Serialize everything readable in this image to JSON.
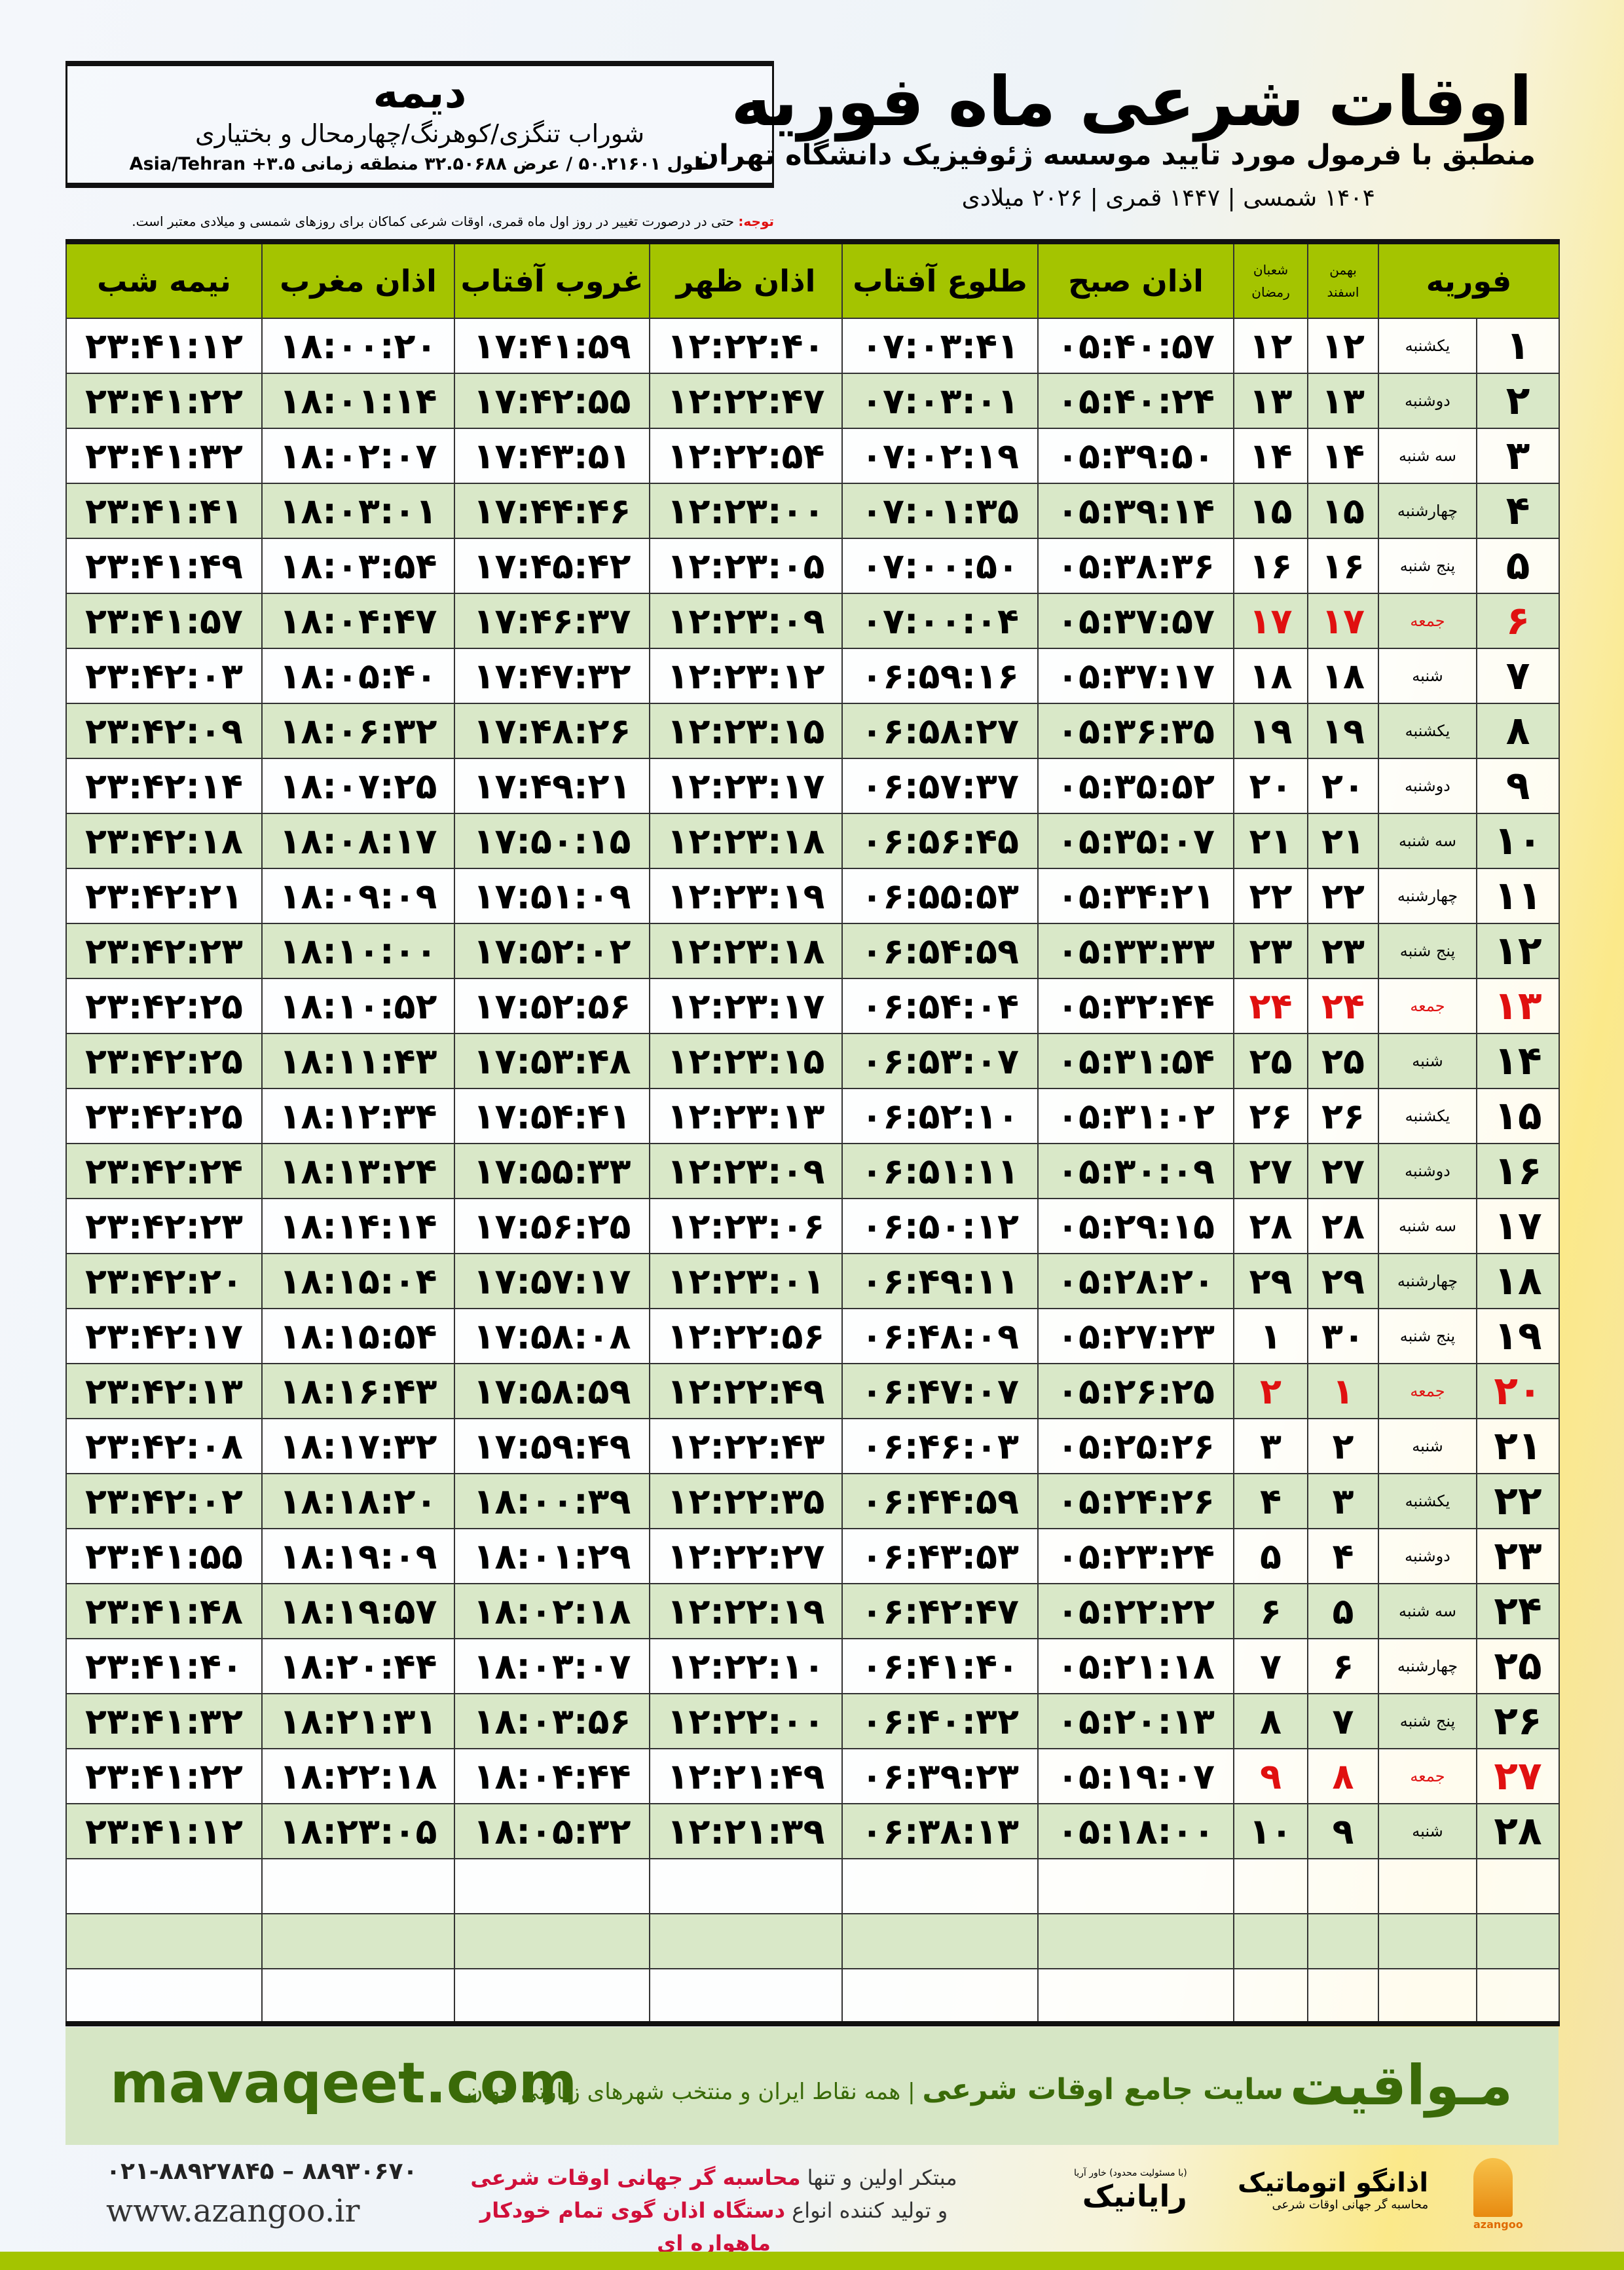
{
  "location": {
    "city": "دیمه",
    "region": "شوراب تنگزی/کوهرنگ/چهارمحال و بختیاری",
    "coords": "طول ۵۰.۲۱۶۰۱ / عرض ۳۲.۵۰۶۸۸ منطقه زمانی ۳.۵+ Asia/Tehran"
  },
  "header": {
    "title": "اوقات شرعی ماه فوریه",
    "subtitle": "منطبق با فرمول مورد تایید موسسه ژئوفیزیک دانشگاه تهران",
    "dates": "۱۴۰۴ شمسی | ۱۴۴۷ قمری | ۲۰۲۶ میلادی",
    "note_label": "توجه:",
    "note": " حتی در درصورت تغییر در روز اول ماه قمری، اوقات شرعی کماکان برای روزهای شمسی و میلادی معتبر است."
  },
  "table": {
    "columns": {
      "month": "فوریه",
      "persian_top": "بهمن",
      "persian_bottom": "اسفند",
      "hijri_top": "شعبان",
      "hijri_bottom": "رمضان",
      "fajr": "اذان صبح",
      "sunrise": "طلوع آفتاب",
      "dhuhr": "اذان ظهر",
      "sunset": "غروب آفتاب",
      "maghrib": "اذان مغرب",
      "midnight": "نیمه شب"
    },
    "friday_color": "#e01010",
    "rows": [
      [
        "۱",
        "یکشنبه",
        "۱۲",
        "۱۲",
        "۰۵:۴۰:۵۷",
        "۰۷:۰۳:۴۱",
        "۱۲:۲۲:۴۰",
        "۱۷:۴۱:۵۹",
        "۱۸:۰۰:۲۰",
        "۲۳:۴۱:۱۲"
      ],
      [
        "۲",
        "دوشنبه",
        "۱۳",
        "۱۳",
        "۰۵:۴۰:۲۴",
        "۰۷:۰۳:۰۱",
        "۱۲:۲۲:۴۷",
        "۱۷:۴۲:۵۵",
        "۱۸:۰۱:۱۴",
        "۲۳:۴۱:۲۲"
      ],
      [
        "۳",
        "سه شنبه",
        "۱۴",
        "۱۴",
        "۰۵:۳۹:۵۰",
        "۰۷:۰۲:۱۹",
        "۱۲:۲۲:۵۴",
        "۱۷:۴۳:۵۱",
        "۱۸:۰۲:۰۷",
        "۲۳:۴۱:۳۲"
      ],
      [
        "۴",
        "چهارشنبه",
        "۱۵",
        "۱۵",
        "۰۵:۳۹:۱۴",
        "۰۷:۰۱:۳۵",
        "۱۲:۲۳:۰۰",
        "۱۷:۴۴:۴۶",
        "۱۸:۰۳:۰۱",
        "۲۳:۴۱:۴۱"
      ],
      [
        "۵",
        "پنج شنبه",
        "۱۶",
        "۱۶",
        "۰۵:۳۸:۳۶",
        "۰۷:۰۰:۵۰",
        "۱۲:۲۳:۰۵",
        "۱۷:۴۵:۴۲",
        "۱۸:۰۳:۵۴",
        "۲۳:۴۱:۴۹"
      ],
      [
        "۶",
        "جمعه",
        "۱۷",
        "۱۷",
        "۰۵:۳۷:۵۷",
        "۰۷:۰۰:۰۴",
        "۱۲:۲۳:۰۹",
        "۱۷:۴۶:۳۷",
        "۱۸:۰۴:۴۷",
        "۲۳:۴۱:۵۷"
      ],
      [
        "۷",
        "شنبه",
        "۱۸",
        "۱۸",
        "۰۵:۳۷:۱۷",
        "۰۶:۵۹:۱۶",
        "۱۲:۲۳:۱۲",
        "۱۷:۴۷:۳۲",
        "۱۸:۰۵:۴۰",
        "۲۳:۴۲:۰۳"
      ],
      [
        "۸",
        "یکشنبه",
        "۱۹",
        "۱۹",
        "۰۵:۳۶:۳۵",
        "۰۶:۵۸:۲۷",
        "۱۲:۲۳:۱۵",
        "۱۷:۴۸:۲۶",
        "۱۸:۰۶:۳۲",
        "۲۳:۴۲:۰۹"
      ],
      [
        "۹",
        "دوشنبه",
        "۲۰",
        "۲۰",
        "۰۵:۳۵:۵۲",
        "۰۶:۵۷:۳۷",
        "۱۲:۲۳:۱۷",
        "۱۷:۴۹:۲۱",
        "۱۸:۰۷:۲۵",
        "۲۳:۴۲:۱۴"
      ],
      [
        "۱۰",
        "سه شنبه",
        "۲۱",
        "۲۱",
        "۰۵:۳۵:۰۷",
        "۰۶:۵۶:۴۵",
        "۱۲:۲۳:۱۸",
        "۱۷:۵۰:۱۵",
        "۱۸:۰۸:۱۷",
        "۲۳:۴۲:۱۸"
      ],
      [
        "۱۱",
        "چهارشنبه",
        "۲۲",
        "۲۲",
        "۰۵:۳۴:۲۱",
        "۰۶:۵۵:۵۳",
        "۱۲:۲۳:۱۹",
        "۱۷:۵۱:۰۹",
        "۱۸:۰۹:۰۹",
        "۲۳:۴۲:۲۱"
      ],
      [
        "۱۲",
        "پنج شنبه",
        "۲۳",
        "۲۳",
        "۰۵:۳۳:۳۳",
        "۰۶:۵۴:۵۹",
        "۱۲:۲۳:۱۸",
        "۱۷:۵۲:۰۲",
        "۱۸:۱۰:۰۰",
        "۲۳:۴۲:۲۳"
      ],
      [
        "۱۳",
        "جمعه",
        "۲۴",
        "۲۴",
        "۰۵:۳۲:۴۴",
        "۰۶:۵۴:۰۴",
        "۱۲:۲۳:۱۷",
        "۱۷:۵۲:۵۶",
        "۱۸:۱۰:۵۲",
        "۲۳:۴۲:۲۵"
      ],
      [
        "۱۴",
        "شنبه",
        "۲۵",
        "۲۵",
        "۰۵:۳۱:۵۴",
        "۰۶:۵۳:۰۷",
        "۱۲:۲۳:۱۵",
        "۱۷:۵۳:۴۸",
        "۱۸:۱۱:۴۳",
        "۲۳:۴۲:۲۵"
      ],
      [
        "۱۵",
        "یکشنبه",
        "۲۶",
        "۲۶",
        "۰۵:۳۱:۰۲",
        "۰۶:۵۲:۱۰",
        "۱۲:۲۳:۱۳",
        "۱۷:۵۴:۴۱",
        "۱۸:۱۲:۳۴",
        "۲۳:۴۲:۲۵"
      ],
      [
        "۱۶",
        "دوشنبه",
        "۲۷",
        "۲۷",
        "۰۵:۳۰:۰۹",
        "۰۶:۵۱:۱۱",
        "۱۲:۲۳:۰۹",
        "۱۷:۵۵:۳۳",
        "۱۸:۱۳:۲۴",
        "۲۳:۴۲:۲۴"
      ],
      [
        "۱۷",
        "سه شنبه",
        "۲۸",
        "۲۸",
        "۰۵:۲۹:۱۵",
        "۰۶:۵۰:۱۲",
        "۱۲:۲۳:۰۶",
        "۱۷:۵۶:۲۵",
        "۱۸:۱۴:۱۴",
        "۲۳:۴۲:۲۳"
      ],
      [
        "۱۸",
        "چهارشنبه",
        "۲۹",
        "۲۹",
        "۰۵:۲۸:۲۰",
        "۰۶:۴۹:۱۱",
        "۱۲:۲۳:۰۱",
        "۱۷:۵۷:۱۷",
        "۱۸:۱۵:۰۴",
        "۲۳:۴۲:۲۰"
      ],
      [
        "۱۹",
        "پنج شنبه",
        "۳۰",
        "۱",
        "۰۵:۲۷:۲۳",
        "۰۶:۴۸:۰۹",
        "۱۲:۲۲:۵۶",
        "۱۷:۵۸:۰۸",
        "۱۸:۱۵:۵۴",
        "۲۳:۴۲:۱۷"
      ],
      [
        "۲۰",
        "جمعه",
        "۱",
        "۲",
        "۰۵:۲۶:۲۵",
        "۰۶:۴۷:۰۷",
        "۱۲:۲۲:۴۹",
        "۱۷:۵۸:۵۹",
        "۱۸:۱۶:۴۳",
        "۲۳:۴۲:۱۳"
      ],
      [
        "۲۱",
        "شنبه",
        "۲",
        "۳",
        "۰۵:۲۵:۲۶",
        "۰۶:۴۶:۰۳",
        "۱۲:۲۲:۴۳",
        "۱۷:۵۹:۴۹",
        "۱۸:۱۷:۳۲",
        "۲۳:۴۲:۰۸"
      ],
      [
        "۲۲",
        "یکشنبه",
        "۳",
        "۴",
        "۰۵:۲۴:۲۶",
        "۰۶:۴۴:۵۹",
        "۱۲:۲۲:۳۵",
        "۱۸:۰۰:۳۹",
        "۱۸:۱۸:۲۰",
        "۲۳:۴۲:۰۲"
      ],
      [
        "۲۳",
        "دوشنبه",
        "۴",
        "۵",
        "۰۵:۲۳:۲۴",
        "۰۶:۴۳:۵۳",
        "۱۲:۲۲:۲۷",
        "۱۸:۰۱:۲۹",
        "۱۸:۱۹:۰۹",
        "۲۳:۴۱:۵۵"
      ],
      [
        "۲۴",
        "سه شنبه",
        "۵",
        "۶",
        "۰۵:۲۲:۲۲",
        "۰۶:۴۲:۴۷",
        "۱۲:۲۲:۱۹",
        "۱۸:۰۲:۱۸",
        "۱۸:۱۹:۵۷",
        "۲۳:۴۱:۴۸"
      ],
      [
        "۲۵",
        "چهارشنبه",
        "۶",
        "۷",
        "۰۵:۲۱:۱۸",
        "۰۶:۴۱:۴۰",
        "۱۲:۲۲:۱۰",
        "۱۸:۰۳:۰۷",
        "۱۸:۲۰:۴۴",
        "۲۳:۴۱:۴۰"
      ],
      [
        "۲۶",
        "پنج شنبه",
        "۷",
        "۸",
        "۰۵:۲۰:۱۳",
        "۰۶:۴۰:۳۲",
        "۱۲:۲۲:۰۰",
        "۱۸:۰۳:۵۶",
        "۱۸:۲۱:۳۱",
        "۲۳:۴۱:۳۲"
      ],
      [
        "۲۷",
        "جمعه",
        "۸",
        "۹",
        "۰۵:۱۹:۰۷",
        "۰۶:۳۹:۲۳",
        "۱۲:۲۱:۴۹",
        "۱۸:۰۴:۴۴",
        "۱۸:۲۲:۱۸",
        "۲۳:۴۱:۲۲"
      ],
      [
        "۲۸",
        "شنبه",
        "۹",
        "۱۰",
        "۰۵:۱۸:۰۰",
        "۰۶:۳۸:۱۳",
        "۱۲:۲۱:۳۹",
        "۱۸:۰۵:۳۲",
        "۱۸:۲۳:۰۵",
        "۲۳:۴۱:۱۲"
      ]
    ]
  },
  "footer": {
    "site": "mavaqeet.com",
    "brand": "مـواقیت",
    "slogan_main": "سایت جامع اوقات شرعی",
    "slogan_sub": "همه نقاط ایران و منتخب شهرهای زیارتی جهان",
    "phone": "۰۲۱-۸۸۹۲۷۸۴۵ – ۸۸۹۳۰۶۷۰",
    "url": "www.azangoo.ir",
    "ad_1a": "مبتکر اولین و تنها ",
    "ad_1b": "محاسبه گر جهانی اوقات شرعی",
    "ad_2a": "و تولید کننده انواع ",
    "ad_2b": "دستگاه اذان گوی تمام خودکار ماهواره ای",
    "logo_rayanik": "رایانیک",
    "logo_rayanik_sub": "(با مسئولیت محدود) خاور آریا",
    "logo_azangoo": "اذانگو اتوماتیک",
    "logo_azangoo_sub": "محاسبه گر جهانی اوقات شرعی",
    "logo_azangoo_latin": "azangoo"
  }
}
